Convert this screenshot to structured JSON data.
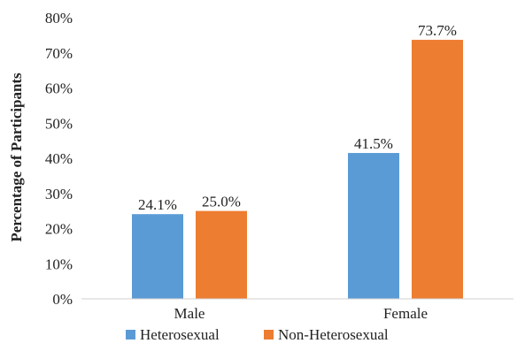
{
  "chart_data": {
    "type": "bar",
    "categories": [
      "Male",
      "Female"
    ],
    "series": [
      {
        "name": "Heterosexual",
        "values": [
          24.1,
          41.5
        ],
        "labels": [
          "24.1%",
          "41.5%"
        ],
        "color": "#5b9bd5"
      },
      {
        "name": "Non-Heterosexual",
        "values": [
          25.0,
          73.7
        ],
        "labels": [
          "25.0%",
          "73.7%"
        ],
        "color": "#ed7d31"
      }
    ],
    "ylabel": "Percentage of Participants",
    "xlabel": "",
    "title": "",
    "ylim": [
      0,
      80
    ],
    "yticks": [
      {
        "value": 0,
        "label": "0%"
      },
      {
        "value": 10,
        "label": "10%"
      },
      {
        "value": 20,
        "label": "20%"
      },
      {
        "value": 30,
        "label": "30%"
      },
      {
        "value": 40,
        "label": "40%"
      },
      {
        "value": 50,
        "label": "50%"
      },
      {
        "value": 60,
        "label": "60%"
      },
      {
        "value": 70,
        "label": "70%"
      },
      {
        "value": 80,
        "label": "80%"
      }
    ],
    "grid": false,
    "legend_position": "bottom"
  }
}
